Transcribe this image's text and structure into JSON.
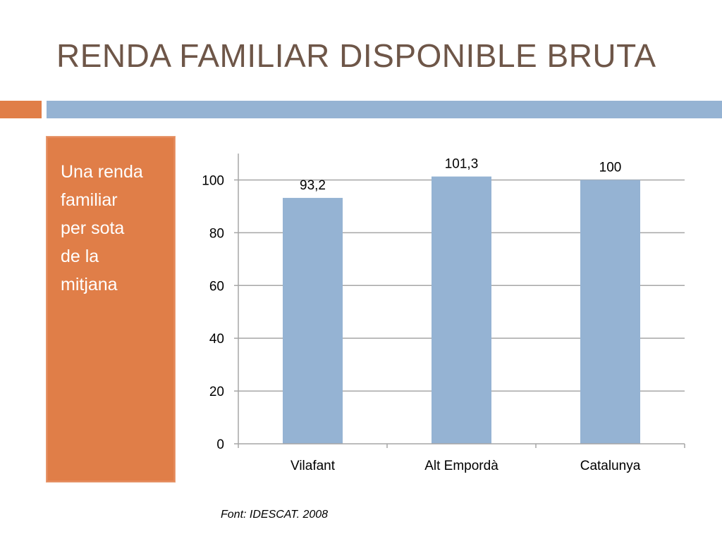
{
  "slide": {
    "title": "RENDA FAMILIAR DISPONIBLE BRUTA",
    "side_text": "Una renda\nfamiliar\nper sota\nde la\nmitjana",
    "source": "Font: IDESCAT. 2008"
  },
  "colors": {
    "title": "#6e5648",
    "accent_orange": "#e07e48",
    "accent_blue": "#95b3d3",
    "bar": "#95b3d3",
    "grid": "#a6a6a6"
  },
  "chart_data": {
    "type": "bar",
    "categories": [
      "Vilafant",
      "Alt Empordà",
      "Catalunya"
    ],
    "values": [
      93.2,
      101.3,
      100
    ],
    "data_labels": [
      "93,2",
      "101,3",
      "100"
    ],
    "yticks": [
      0,
      20,
      40,
      60,
      80,
      100
    ],
    "ylim": [
      0,
      110
    ],
    "grid": true,
    "legend": "none"
  }
}
